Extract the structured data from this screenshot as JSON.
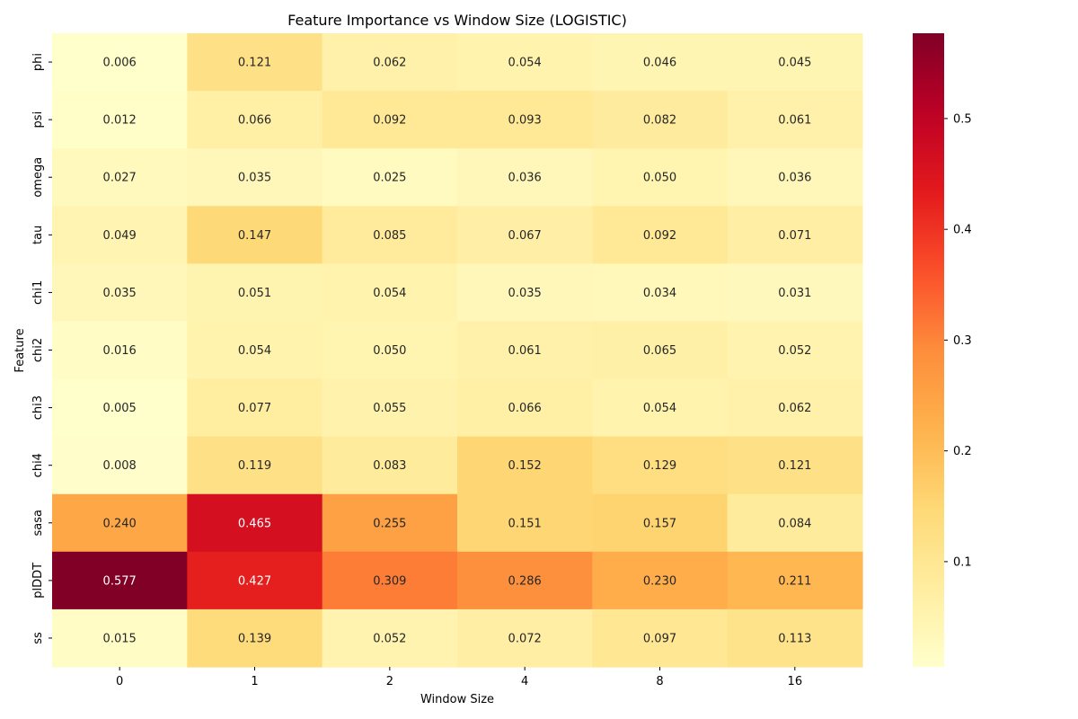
{
  "chart_data": {
    "type": "heatmap",
    "title": "Feature Importance vs Window Size (LOGISTIC)",
    "xlabel": "Window Size",
    "ylabel": "Feature",
    "x_categories": [
      "0",
      "1",
      "2",
      "4",
      "8",
      "16"
    ],
    "y_categories": [
      "phi",
      "psi",
      "omega",
      "tau",
      "chi1",
      "chi2",
      "chi3",
      "chi4",
      "sasa",
      "plDDT",
      "ss"
    ],
    "values": [
      [
        0.006,
        0.121,
        0.062,
        0.054,
        0.046,
        0.045
      ],
      [
        0.012,
        0.066,
        0.092,
        0.093,
        0.082,
        0.061
      ],
      [
        0.027,
        0.035,
        0.025,
        0.036,
        0.05,
        0.036
      ],
      [
        0.049,
        0.147,
        0.085,
        0.067,
        0.092,
        0.071
      ],
      [
        0.035,
        0.051,
        0.054,
        0.035,
        0.034,
        0.031
      ],
      [
        0.016,
        0.054,
        0.05,
        0.061,
        0.065,
        0.052
      ],
      [
        0.005,
        0.077,
        0.055,
        0.066,
        0.054,
        0.062
      ],
      [
        0.008,
        0.119,
        0.083,
        0.152,
        0.129,
        0.121
      ],
      [
        0.24,
        0.465,
        0.255,
        0.151,
        0.157,
        0.084
      ],
      [
        0.577,
        0.427,
        0.309,
        0.286,
        0.23,
        0.211
      ],
      [
        0.015,
        0.139,
        0.052,
        0.072,
        0.097,
        0.113
      ]
    ],
    "value_format": "3 decimals",
    "colormap": "YlOrRd",
    "vmin": 0.005,
    "vmax": 0.577,
    "colorbar_ticks": [
      0.1,
      0.2,
      0.3,
      0.4,
      0.5
    ],
    "colorbar_tick_labels": [
      "0.1",
      "0.2",
      "0.3",
      "0.4",
      "0.5"
    ]
  }
}
